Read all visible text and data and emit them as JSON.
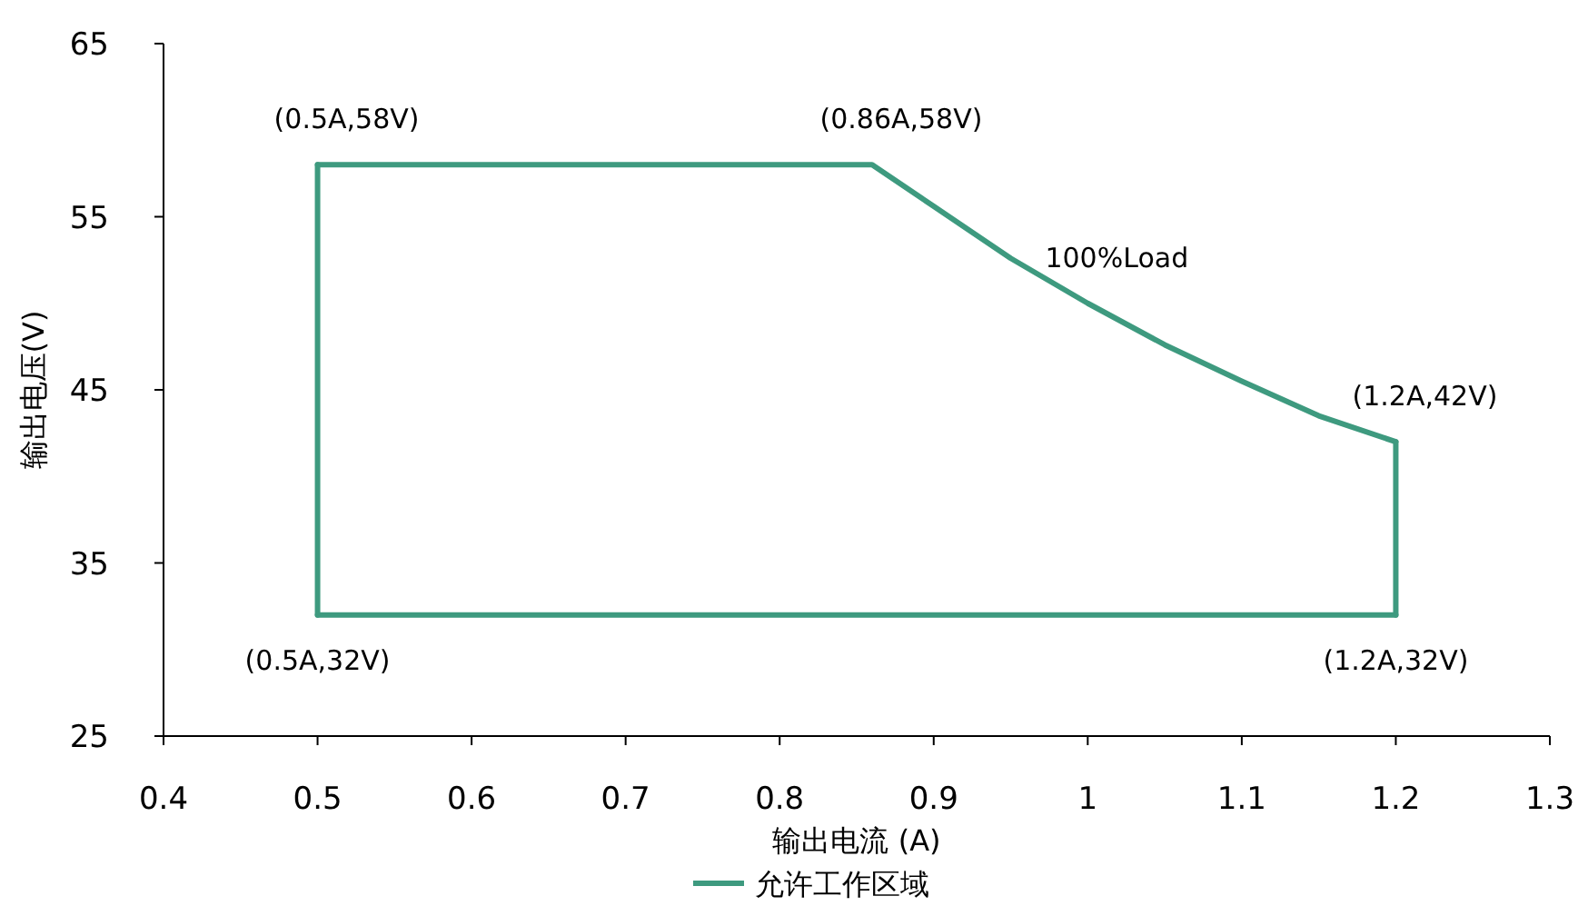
{
  "chart_data": {
    "type": "line",
    "xlabel": "输出电流 (A)",
    "ylabel": "输出电压(V)",
    "series": [
      {
        "name": "允许工作区域",
        "color": "#3e9a7f",
        "x": [
          0.5,
          0.86,
          0.9,
          0.95,
          1.0,
          1.05,
          1.1,
          1.15,
          1.2
        ],
        "values": [
          58,
          58,
          55.6,
          52.6,
          50,
          47.6,
          45.5,
          43.5,
          42
        ]
      },
      {
        "color": "#3e9a7f",
        "x": [
          1.2,
          1.2
        ],
        "values": [
          42,
          32
        ]
      },
      {
        "color": "#3e9a7f",
        "x": [
          0.5,
          1.2
        ],
        "values": [
          32,
          32
        ]
      },
      {
        "color": "#3e9a7f",
        "x": [
          0.5,
          0.5
        ],
        "values": [
          32,
          58
        ]
      }
    ],
    "xlim": [
      0.4,
      1.3
    ],
    "xticks": [
      0.4,
      0.5,
      0.6,
      0.7,
      0.8,
      0.9,
      1,
      1.1,
      1.2,
      1.3
    ],
    "ylim": [
      25,
      65
    ],
    "yticks": [
      25,
      35,
      45,
      55,
      65
    ],
    "grid": false,
    "legend": "bottom",
    "marker": "none",
    "line_style": "solid",
    "annotations": [
      {
        "text": "(0.5A,58V)",
        "x": 0.5,
        "y": 58
      },
      {
        "text": "(0.86A,58V)",
        "x": 0.86,
        "y": 58
      },
      {
        "text": "100%Load",
        "x": 1.0,
        "y": 50
      },
      {
        "text": "(1.2A,42V)",
        "x": 1.2,
        "y": 42
      },
      {
        "text": "(0.5A,32V)",
        "x": 0.5,
        "y": 32
      },
      {
        "text": "(1.2A,32V)",
        "x": 1.2,
        "y": 32
      }
    ]
  }
}
